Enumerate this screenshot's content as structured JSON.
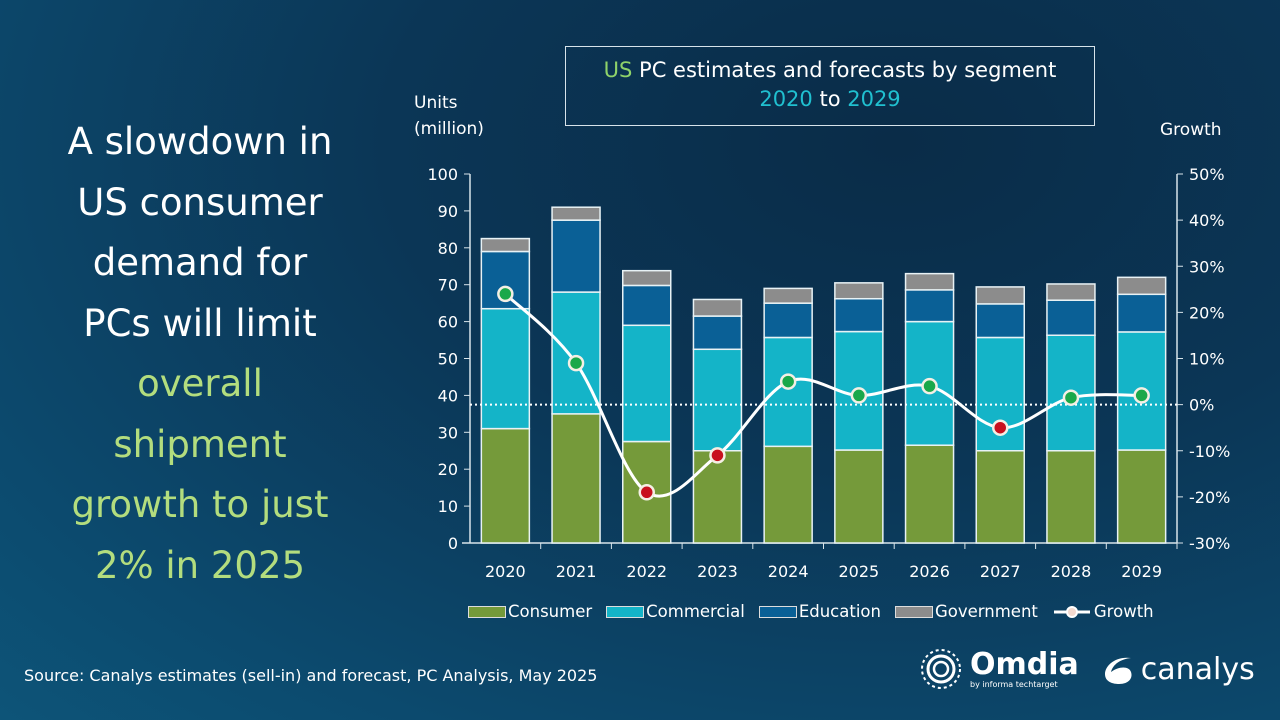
{
  "headline": {
    "white_lines": [
      "A slowdown in",
      "US consumer",
      "demand for",
      "PCs will limit"
    ],
    "green_lines": [
      "overall",
      "shipment",
      "growth to just",
      "2% in 2025"
    ]
  },
  "title": {
    "part1_us": "US",
    "part1_rest": " PC estimates and forecasts by segment",
    "year_from": "2020",
    "to": " to ",
    "year_to": "2029"
  },
  "source": "Source: Canalys estimates (sell-in) and forecast, PC Analysis, May 2025",
  "logos": {
    "omdia": "Omdia",
    "omdia_sub": "by informa techtarget",
    "canalys": "canalys"
  },
  "colors": {
    "consumer": "#759a3a",
    "commercial": "#14b4c8",
    "education": "#0a6096",
    "government": "#8c8c8c",
    "growth_pos": "#1aa84a",
    "growth_neg": "#c8101e"
  },
  "chart_data": {
    "type": "bar",
    "stacked": true,
    "title": "US PC estimates and forecasts by segment 2020 to 2029",
    "ylabel_lines": [
      "Units",
      "(million)"
    ],
    "y2label": "Growth",
    "ylim": [
      0,
      100
    ],
    "yticks": [
      0,
      10,
      20,
      30,
      40,
      50,
      60,
      70,
      80,
      90,
      100
    ],
    "y2lim": [
      -30,
      50
    ],
    "y2ticks": [
      "-30%",
      "-20%",
      "-10%",
      "0%",
      "10%",
      "20%",
      "30%",
      "40%",
      "50%"
    ],
    "categories": [
      "2020",
      "2021",
      "2022",
      "2023",
      "2024",
      "2025",
      "2026",
      "2027",
      "2028",
      "2029"
    ],
    "series": [
      {
        "name": "Consumer",
        "values": [
          31,
          35,
          27.5,
          25,
          26.2,
          25.2,
          26.5,
          25,
          25,
          25.2
        ]
      },
      {
        "name": "Commercial",
        "values": [
          32.5,
          33,
          31.5,
          27.5,
          29.5,
          32.1,
          33.5,
          30.7,
          31.3,
          32
        ]
      },
      {
        "name": "Education",
        "values": [
          15.5,
          19.5,
          10.8,
          9,
          9.3,
          8.9,
          8.6,
          9.1,
          9.5,
          10.2
        ]
      },
      {
        "name": "Government",
        "values": [
          3.5,
          3.5,
          4,
          4.5,
          4,
          4.3,
          4.4,
          4.6,
          4.4,
          4.6
        ]
      }
    ],
    "growth": {
      "name": "Growth",
      "axis": "right",
      "values": [
        24,
        9,
        -19,
        -11,
        5,
        2,
        4,
        -5,
        1.5,
        2
      ]
    },
    "legend_position": "bottom"
  }
}
